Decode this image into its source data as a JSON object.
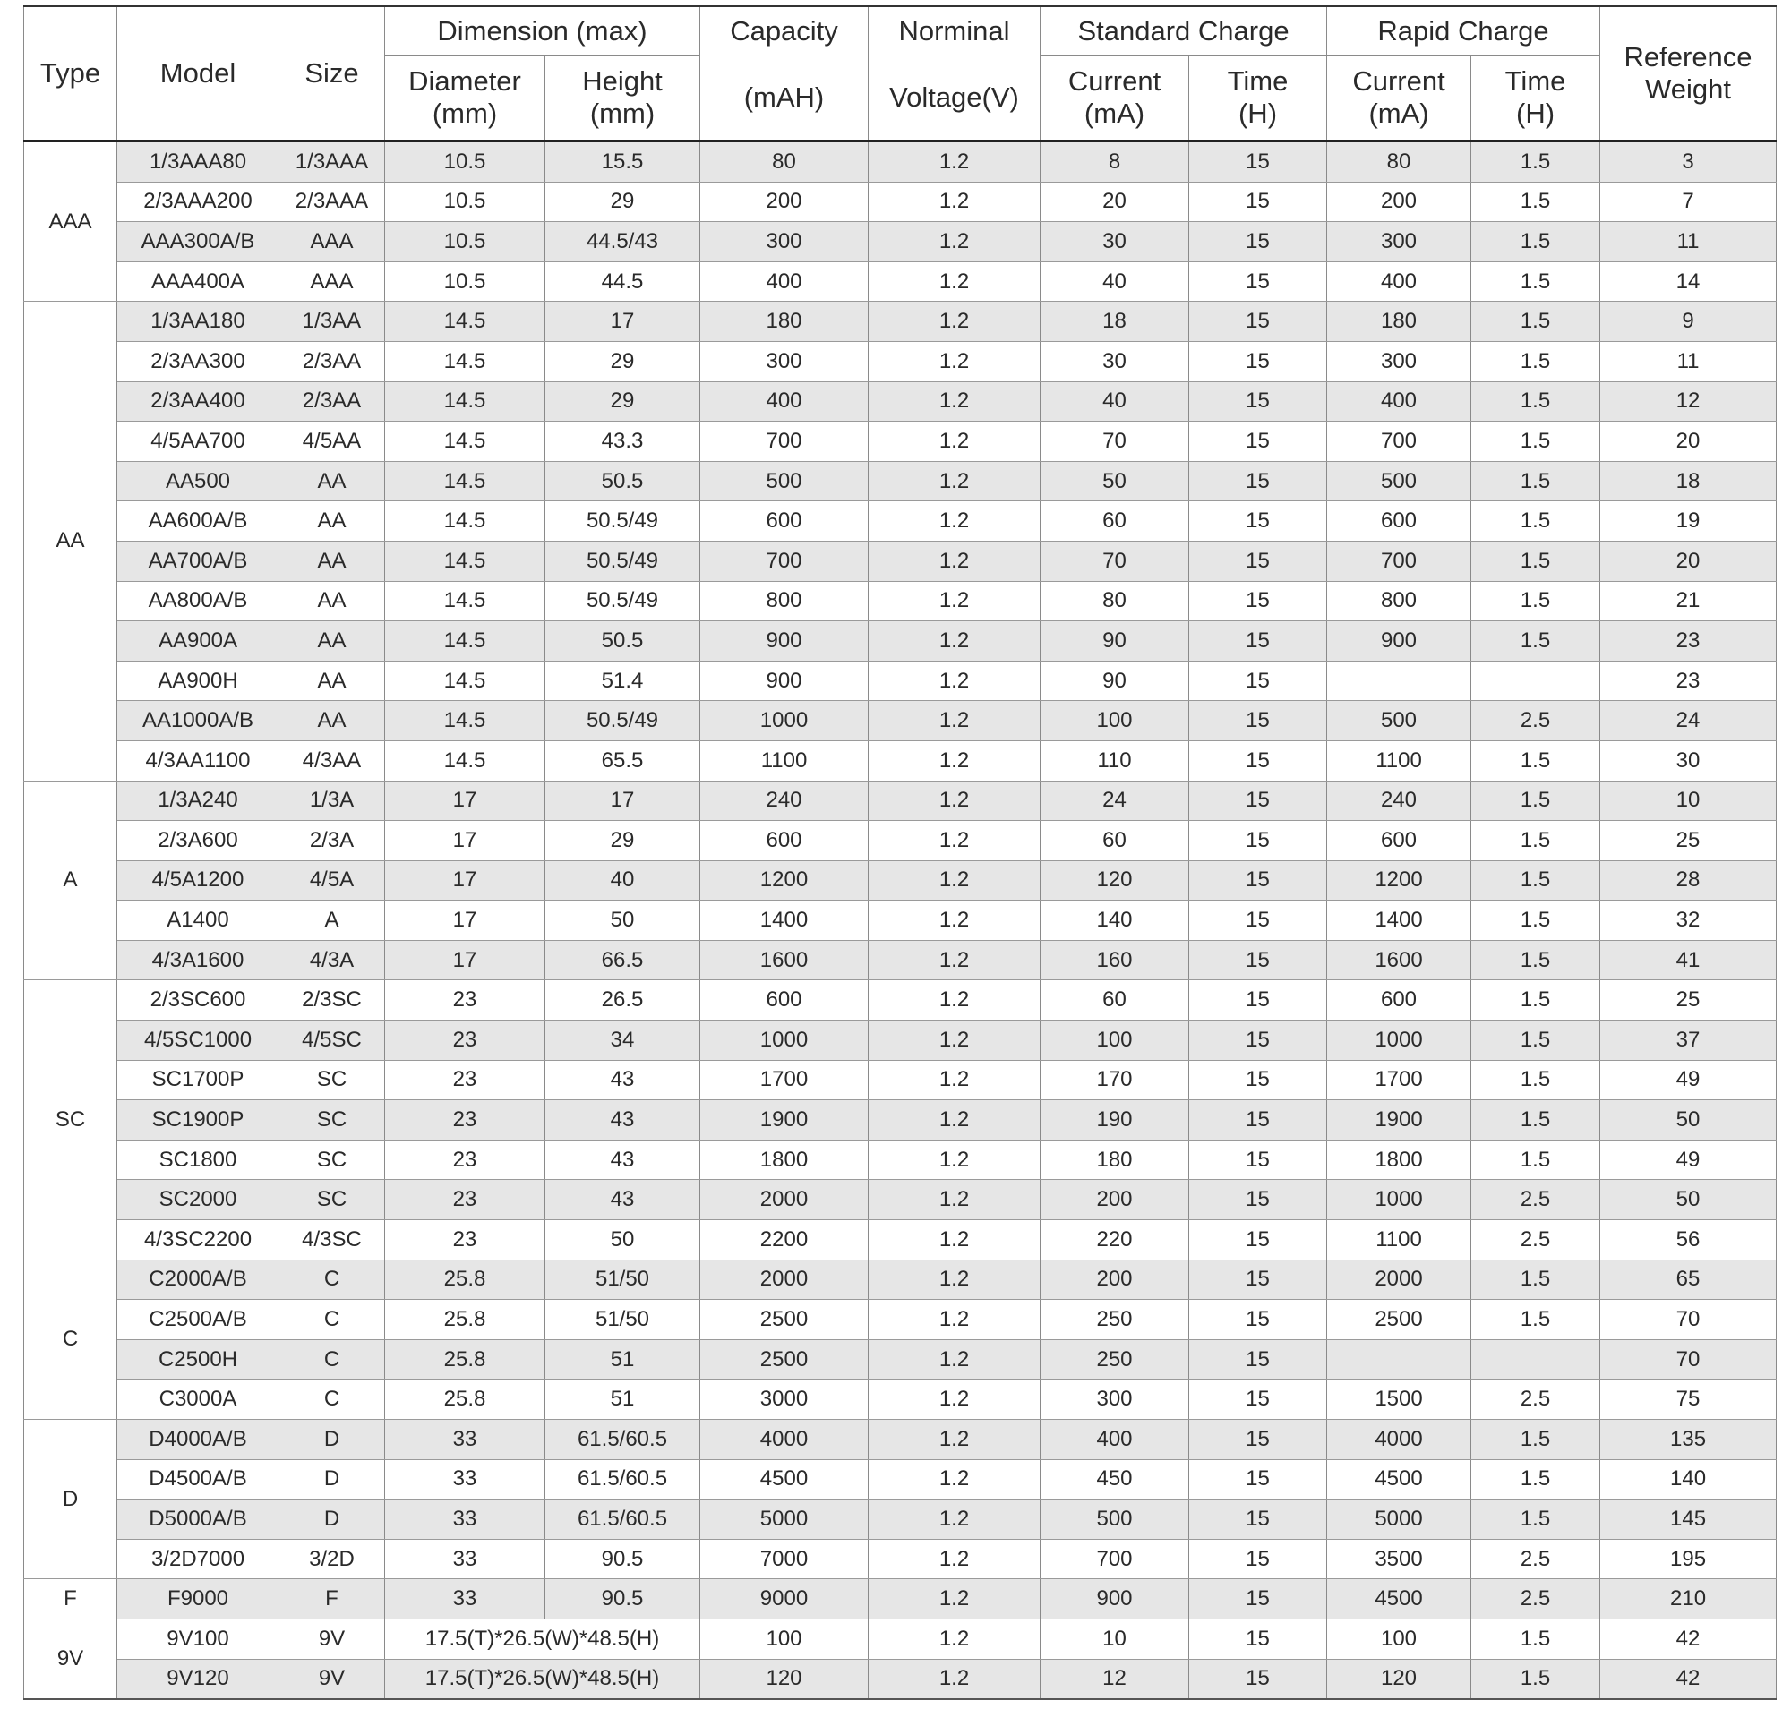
{
  "header": {
    "type": "Type",
    "model": "Model",
    "size": "Size",
    "dimension": "Dimension (max)",
    "capacity": "Capacity",
    "nominal": "Norminal",
    "standard_charge": "Standard Charge",
    "rapid_charge": "Rapid Charge",
    "weight": "Reference\nWeight",
    "diameter": "Diameter\n(mm)",
    "height": "Height\n(mm)",
    "capacity_unit": "(mAH)",
    "voltage": "Voltage(V)",
    "std_current": "Current\n(mA)",
    "std_time": "Time\n(H)",
    "rapid_current": "Current\n(mA)",
    "rapid_time": "Time\n(H)"
  },
  "groups": [
    {
      "type": "AAA",
      "rows": [
        [
          "1/3AAA80",
          "1/3AAA",
          10.5,
          15.5,
          80,
          1.2,
          8,
          15,
          80,
          1.5,
          3
        ],
        [
          "2/3AAA200",
          "2/3AAA",
          10.5,
          29,
          200,
          1.2,
          20,
          15,
          200,
          1.5,
          7
        ],
        [
          "AAA300A/B",
          "AAA",
          10.5,
          "44.5/43",
          300,
          1.2,
          30,
          15,
          300,
          1.5,
          11
        ],
        [
          "AAA400A",
          "AAA",
          10.5,
          44.5,
          400,
          1.2,
          40,
          15,
          400,
          1.5,
          14
        ]
      ]
    },
    {
      "type": "AA",
      "rows": [
        [
          "1/3AA180",
          "1/3AA",
          14.5,
          17,
          180,
          1.2,
          18,
          15,
          180,
          1.5,
          9
        ],
        [
          "2/3AA300",
          "2/3AA",
          14.5,
          29,
          300,
          1.2,
          30,
          15,
          300,
          1.5,
          11
        ],
        [
          "2/3AA400",
          "2/3AA",
          14.5,
          29,
          400,
          1.2,
          40,
          15,
          400,
          1.5,
          12
        ],
        [
          "4/5AA700",
          "4/5AA",
          14.5,
          43.3,
          700,
          1.2,
          70,
          15,
          700,
          1.5,
          20
        ],
        [
          "AA500",
          "AA",
          14.5,
          50.5,
          500,
          1.2,
          50,
          15,
          500,
          1.5,
          18
        ],
        [
          "AA600A/B",
          "AA",
          14.5,
          "50.5/49",
          600,
          1.2,
          60,
          15,
          600,
          1.5,
          19
        ],
        [
          "AA700A/B",
          "AA",
          14.5,
          "50.5/49",
          700,
          1.2,
          70,
          15,
          700,
          1.5,
          20
        ],
        [
          "AA800A/B",
          "AA",
          14.5,
          "50.5/49",
          800,
          1.2,
          80,
          15,
          800,
          1.5,
          21
        ],
        [
          "AA900A",
          "AA",
          14.5,
          50.5,
          900,
          1.2,
          90,
          15,
          900,
          1.5,
          23
        ],
        [
          "AA900H",
          "AA",
          14.5,
          51.4,
          900,
          1.2,
          90,
          15,
          null,
          null,
          23
        ],
        [
          "AA1000A/B",
          "AA",
          14.5,
          "50.5/49",
          1000,
          1.2,
          100,
          15,
          500,
          2.5,
          24
        ],
        [
          "4/3AA1100",
          "4/3AA",
          14.5,
          65.5,
          1100,
          1.2,
          110,
          15,
          1100,
          1.5,
          30
        ]
      ]
    },
    {
      "type": "A",
      "rows": [
        [
          "1/3A240",
          "1/3A",
          17,
          17,
          240,
          1.2,
          24,
          15,
          240,
          1.5,
          10
        ],
        [
          "2/3A600",
          "2/3A",
          17,
          29,
          600,
          1.2,
          60,
          15,
          600,
          1.5,
          25
        ],
        [
          "4/5A1200",
          "4/5A",
          17,
          40,
          1200,
          1.2,
          120,
          15,
          1200,
          1.5,
          28
        ],
        [
          "A1400",
          "A",
          17,
          50,
          1400,
          1.2,
          140,
          15,
          1400,
          1.5,
          32
        ],
        [
          "4/3A1600",
          "4/3A",
          17,
          66.5,
          1600,
          1.2,
          160,
          15,
          1600,
          1.5,
          41
        ]
      ]
    },
    {
      "type": "SC",
      "rows": [
        [
          "2/3SC600",
          "2/3SC",
          23,
          26.5,
          600,
          1.2,
          60,
          15,
          600,
          1.5,
          25
        ],
        [
          "4/5SC1000",
          "4/5SC",
          23,
          34,
          1000,
          1.2,
          100,
          15,
          1000,
          1.5,
          37
        ],
        [
          "SC1700P",
          "SC",
          23,
          43,
          1700,
          1.2,
          170,
          15,
          1700,
          1.5,
          49
        ],
        [
          "SC1900P",
          "SC",
          23,
          43,
          1900,
          1.2,
          190,
          15,
          1900,
          1.5,
          50
        ],
        [
          "SC1800",
          "SC",
          23,
          43,
          1800,
          1.2,
          180,
          15,
          1800,
          1.5,
          49
        ],
        [
          "SC2000",
          "SC",
          23,
          43,
          2000,
          1.2,
          200,
          15,
          1000,
          2.5,
          50
        ],
        [
          "4/3SC2200",
          "4/3SC",
          23,
          50,
          2200,
          1.2,
          220,
          15,
          1100,
          2.5,
          56
        ]
      ]
    },
    {
      "type": "C",
      "rows": [
        [
          "C2000A/B",
          "C",
          25.8,
          "51/50",
          2000,
          1.2,
          200,
          15,
          2000,
          1.5,
          65
        ],
        [
          "C2500A/B",
          "C",
          25.8,
          "51/50",
          2500,
          1.2,
          250,
          15,
          2500,
          1.5,
          70
        ],
        [
          "C2500H",
          "C",
          25.8,
          51,
          2500,
          1.2,
          250,
          15,
          null,
          null,
          70
        ],
        [
          "C3000A",
          "C",
          25.8,
          51,
          3000,
          1.2,
          300,
          15,
          1500,
          2.5,
          75
        ]
      ]
    },
    {
      "type": "D",
      "rows": [
        [
          "D4000A/B",
          "D",
          33,
          "61.5/60.5",
          4000,
          1.2,
          400,
          15,
          4000,
          1.5,
          135
        ],
        [
          "D4500A/B",
          "D",
          33,
          "61.5/60.5",
          4500,
          1.2,
          450,
          15,
          4500,
          1.5,
          140
        ],
        [
          "D5000A/B",
          "D",
          33,
          "61.5/60.5",
          5000,
          1.2,
          500,
          15,
          5000,
          1.5,
          145
        ],
        [
          "3/2D7000",
          "3/2D",
          33,
          90.5,
          7000,
          1.2,
          700,
          15,
          3500,
          2.5,
          195
        ]
      ]
    },
    {
      "type": "F",
      "rows": [
        [
          "F9000",
          "F",
          33,
          90.5,
          9000,
          1.2,
          900,
          15,
          4500,
          2.5,
          210
        ]
      ]
    },
    {
      "type": "9V",
      "rows": [
        [
          "9V100",
          "9V",
          "17.5(T)*26.5(W)*48.5(H)",
          100,
          1.2,
          10,
          15,
          100,
          1.5,
          42
        ],
        [
          "9V120",
          "9V",
          "17.5(T)*26.5(W)*48.5(H)",
          120,
          1.2,
          12,
          15,
          120,
          1.5,
          42
        ]
      ]
    }
  ]
}
